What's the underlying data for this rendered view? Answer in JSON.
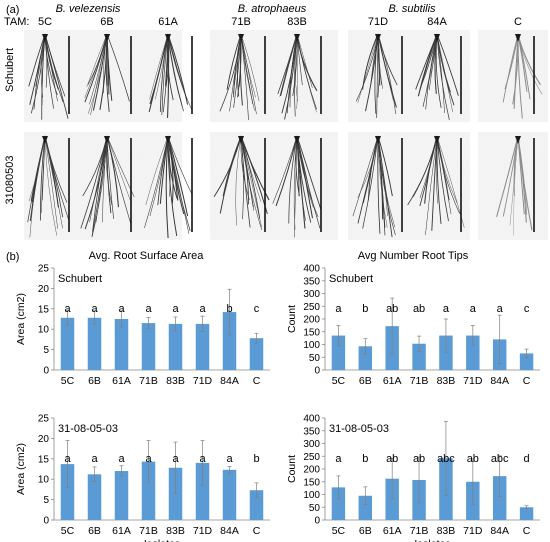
{
  "panel_a": {
    "label": "(a)",
    "tam_label": "TAM:",
    "species": [
      "B. velezensis",
      "B. atrophaeus",
      "B. subtilis"
    ],
    "isolates": [
      "5C",
      "6B",
      "61A",
      "71B",
      "83B",
      "71D",
      "84A",
      "C"
    ],
    "rows": [
      "Schubert",
      "31080503"
    ]
  },
  "panel_b": {
    "label": "(b)"
  },
  "chart_data": [
    {
      "type": "bar",
      "title": "Avg. Root Surface Area",
      "inset_label": "Schubert",
      "xlabel": "",
      "ylabel": "Area (cm2)",
      "ylim": [
        0,
        25
      ],
      "yticks": [
        0,
        5,
        10,
        15,
        20,
        25
      ],
      "categories": [
        "5C",
        "6B",
        "61A",
        "71B",
        "83B",
        "71D",
        "84A",
        "C"
      ],
      "values": [
        12.8,
        12.8,
        12.5,
        11.5,
        11.3,
        11.3,
        14.2,
        7.8
      ],
      "errors": [
        1.8,
        1.7,
        2.0,
        1.4,
        1.7,
        1.9,
        5.6,
        1.2
      ],
      "letters": [
        "a",
        "a",
        "a",
        "a",
        "a",
        "a",
        "b",
        "c"
      ],
      "color": "#5b9bd5"
    },
    {
      "type": "bar",
      "title": "Avg Number Root Tips",
      "inset_label": "Schubert",
      "xlabel": "",
      "ylabel": "Count",
      "ylim": [
        0,
        400
      ],
      "yticks": [
        0,
        50,
        100,
        150,
        200,
        250,
        300,
        350,
        400
      ],
      "categories": [
        "5C",
        "6B",
        "61A",
        "71B",
        "83B",
        "71D",
        "84A",
        "C"
      ],
      "values": [
        135,
        93,
        172,
        103,
        135,
        135,
        120,
        65
      ],
      "errors": [
        40,
        30,
        110,
        30,
        65,
        40,
        95,
        17
      ],
      "letters": [
        "a",
        "b",
        "ab",
        "ab",
        "a",
        "a",
        "a",
        "c"
      ],
      "color": "#5b9bd5"
    },
    {
      "type": "bar",
      "title": "",
      "inset_label": "31-08-05-03",
      "xlabel": "Isolates",
      "ylabel": "Area (cm2)",
      "ylim": [
        0,
        25
      ],
      "yticks": [
        0,
        5,
        10,
        15,
        20,
        25
      ],
      "categories": [
        "5C",
        "6B",
        "61A",
        "71B",
        "83B",
        "71D",
        "84A",
        "C"
      ],
      "values": [
        13.7,
        11.2,
        12.0,
        14.3,
        12.8,
        14.0,
        12.3,
        7.3
      ],
      "errors": [
        5.8,
        1.8,
        1.3,
        5.2,
        6.3,
        5.5,
        0.8,
        1.8
      ],
      "letters": [
        "a",
        "a",
        "a",
        "a",
        "a",
        "a",
        "a",
        "b"
      ],
      "color": "#5b9bd5"
    },
    {
      "type": "bar",
      "title": "",
      "inset_label": "31-08-05-03",
      "xlabel": "Isolates",
      "ylabel": "Count",
      "ylim": [
        0,
        400
      ],
      "yticks": [
        0,
        50,
        100,
        150,
        200,
        250,
        300,
        350,
        400
      ],
      "categories": [
        "5C",
        "6B",
        "61A",
        "71B",
        "83B",
        "71D",
        "84A",
        "C"
      ],
      "values": [
        128,
        95,
        162,
        157,
        242,
        150,
        172,
        50
      ],
      "errors": [
        45,
        35,
        80,
        90,
        145,
        90,
        80,
        6
      ],
      "letters": [
        "a",
        "b",
        "ab",
        "ab",
        "abc",
        "ab",
        "abc",
        "d"
      ],
      "color": "#5b9bd5"
    }
  ]
}
